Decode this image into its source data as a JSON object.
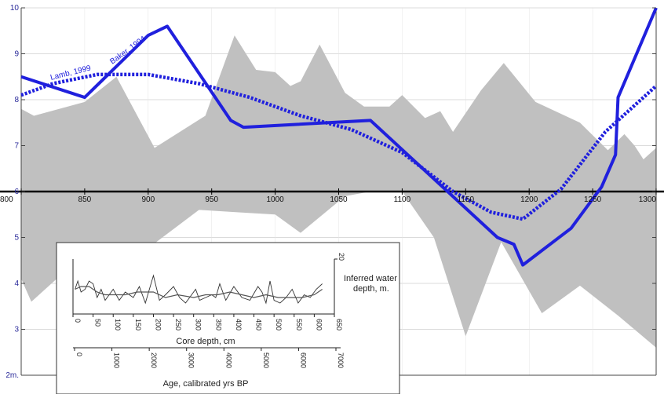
{
  "chart_data": [
    {
      "type": "line",
      "title": "",
      "xlabel": "",
      "ylabel": "",
      "xlim": [
        800,
        1300
      ],
      "ylim": [
        2,
        10
      ],
      "x_ticks": [
        "800",
        "850",
        "900",
        "950",
        "1000",
        "1050",
        "1100",
        "1150",
        "1200",
        "1250",
        "1300"
      ],
      "y_ticks": [
        "10",
        "9",
        "8",
        "7",
        "6",
        "5",
        "4",
        "3",
        "2m."
      ],
      "grid": true,
      "band": {
        "color": "#c0c0c0",
        "upper": [
          [
            800,
            7.8
          ],
          [
            810,
            7.65
          ],
          [
            850,
            7.95
          ],
          [
            875,
            8.5
          ],
          [
            905,
            6.95
          ],
          [
            945,
            7.65
          ],
          [
            968,
            9.4
          ],
          [
            985,
            8.65
          ],
          [
            1000,
            8.6
          ],
          [
            1012,
            8.3
          ],
          [
            1020,
            8.4
          ],
          [
            1035,
            9.2
          ],
          [
            1055,
            8.15
          ],
          [
            1070,
            7.85
          ],
          [
            1090,
            7.85
          ],
          [
            1100,
            8.1
          ],
          [
            1118,
            7.6
          ],
          [
            1130,
            7.75
          ],
          [
            1140,
            7.3
          ],
          [
            1162,
            8.2
          ],
          [
            1180,
            8.8
          ],
          [
            1205,
            7.95
          ],
          [
            1240,
            7.5
          ],
          [
            1262,
            6.9
          ],
          [
            1275,
            7.25
          ],
          [
            1283,
            7.0
          ],
          [
            1290,
            6.7
          ],
          [
            1300,
            6.95
          ]
        ],
        "lower": [
          [
            800,
            4.1
          ],
          [
            808,
            3.6
          ],
          [
            848,
            4.6
          ],
          [
            880,
            4.35
          ],
          [
            940,
            5.6
          ],
          [
            970,
            5.55
          ],
          [
            1000,
            5.5
          ],
          [
            1020,
            5.1
          ],
          [
            1055,
            5.9
          ],
          [
            1075,
            6.0
          ],
          [
            1100,
            6.0
          ],
          [
            1125,
            5.0
          ],
          [
            1150,
            2.85
          ],
          [
            1178,
            4.9
          ],
          [
            1210,
            3.35
          ],
          [
            1240,
            3.95
          ],
          [
            1270,
            3.3
          ],
          [
            1300,
            2.6
          ]
        ]
      },
      "series": [
        {
          "color": "#2020dd",
          "style": "solid",
          "x": [
            800,
            850,
            900,
            915,
            965,
            975,
            1075,
            1175,
            1188,
            1195,
            1233,
            1257,
            1268,
            1270,
            1300
          ],
          "y": [
            8.5,
            8.05,
            9.4,
            9.6,
            7.55,
            7.4,
            7.55,
            5.0,
            4.85,
            4.4,
            5.2,
            6.1,
            6.8,
            8.05,
            10.0
          ]
        },
        {
          "color": "#2020dd",
          "style": "dotted",
          "x": [
            800,
            825,
            860,
            900,
            940,
            980,
            1020,
            1060,
            1100,
            1140,
            1170,
            1195,
            1225,
            1260,
            1300
          ],
          "y": [
            8.1,
            8.35,
            8.55,
            8.55,
            8.35,
            8.05,
            7.65,
            7.35,
            6.85,
            6.0,
            5.55,
            5.4,
            6.05,
            7.3,
            8.3
          ]
        }
      ],
      "annotations": [
        {
          "text": "Lamb, 1999",
          "color": "#2020dd"
        },
        {
          "text": "Baker, 1994",
          "color": "#2020dd"
        }
      ]
    },
    {
      "type": "line",
      "title": "",
      "xlabel": "Core depth, cm",
      "ylabel": "Inferred water depth, m.",
      "xlim": [
        0,
        650
      ],
      "ylim": [
        0,
        20
      ],
      "x_ticks": [
        "0",
        "50",
        "100",
        "150",
        "200",
        "250",
        "300",
        "350",
        "400",
        "450",
        "500",
        "550",
        "600",
        "650"
      ],
      "y_ticks": [
        "20"
      ],
      "secondary_axis": {
        "label": "Age, calibrated yrs BP",
        "range": [
          0,
          7000
        ],
        "ticks": [
          "0",
          "1000",
          "2000",
          "3000",
          "4000",
          "5000",
          "6000",
          "7000"
        ]
      },
      "series": [
        {
          "style": "solid",
          "x": [
            5,
            12,
            20,
            30,
            40,
            50,
            60,
            70,
            80,
            90,
            100,
            115,
            130,
            150,
            165,
            180,
            200,
            215,
            230,
            250,
            265,
            280,
            295,
            305,
            315,
            330,
            345,
            355,
            365,
            380,
            400,
            420,
            440,
            460,
            470,
            480,
            490,
            500,
            515,
            530,
            545,
            560,
            575,
            590,
            605,
            620
          ],
          "y": [
            9,
            12,
            8,
            9,
            12,
            11,
            6,
            9,
            5,
            7,
            9,
            5,
            8,
            6,
            10,
            4,
            14,
            5,
            7,
            10,
            6,
            4,
            7,
            9,
            5,
            6,
            7,
            6,
            11,
            5,
            10,
            6,
            5,
            10,
            8,
            4,
            12,
            5,
            4,
            6,
            9,
            4,
            7,
            6,
            9,
            11
          ]
        },
        {
          "style": "solid",
          "x": [
            5,
            20,
            40,
            60,
            80,
            100,
            130,
            160,
            200,
            230,
            260,
            300,
            330,
            360,
            390,
            420,
            450,
            480,
            510,
            540,
            570,
            600,
            620
          ],
          "y": [
            9,
            10,
            10,
            8,
            7,
            7,
            7,
            8,
            8,
            6,
            7,
            6,
            7,
            7,
            8,
            7,
            6,
            7,
            6,
            6,
            6,
            7,
            9
          ]
        }
      ]
    }
  ]
}
